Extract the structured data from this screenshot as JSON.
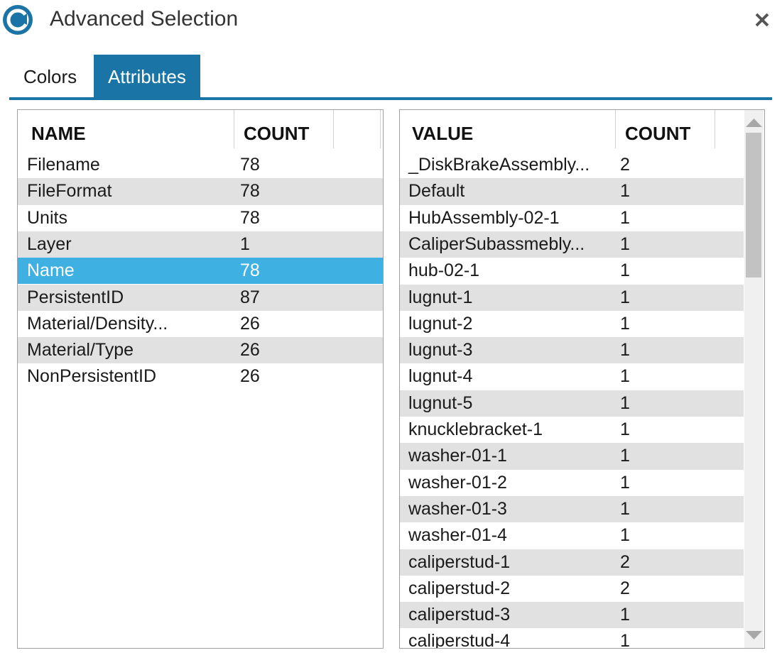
{
  "window": {
    "title": "Advanced Selection"
  },
  "tabs": {
    "items": [
      "Colors",
      "Attributes"
    ],
    "active": 1
  },
  "left_table": {
    "headers": [
      "NAME",
      "COUNT"
    ],
    "selected_row": 4,
    "rows": [
      [
        "Filename",
        78
      ],
      [
        "FileFormat",
        78
      ],
      [
        "Units",
        78
      ],
      [
        "Layer",
        1
      ],
      [
        "Name",
        78
      ],
      [
        "PersistentID",
        87
      ],
      [
        "Material/Density...",
        26
      ],
      [
        "Material/Type",
        26
      ],
      [
        "NonPersistentID",
        26
      ]
    ]
  },
  "right_table": {
    "headers": [
      "VALUE",
      "COUNT"
    ],
    "rows": [
      [
        "_DiskBrakeAssembly...",
        2
      ],
      [
        "Default",
        1
      ],
      [
        "HubAssembly-02-1",
        1
      ],
      [
        "CaliperSubassmebly...",
        1
      ],
      [
        "hub-02-1",
        1
      ],
      [
        "lugnut-1",
        1
      ],
      [
        "lugnut-2",
        1
      ],
      [
        "lugnut-3",
        1
      ],
      [
        "lugnut-4",
        1
      ],
      [
        "lugnut-5",
        1
      ],
      [
        "knucklebracket-1",
        1
      ],
      [
        "washer-01-1",
        1
      ],
      [
        "washer-01-2",
        1
      ],
      [
        "washer-01-3",
        1
      ],
      [
        "washer-01-4",
        1
      ],
      [
        "caliperstud-1",
        2
      ],
      [
        "caliperstud-2",
        2
      ],
      [
        "caliperstud-3",
        1
      ],
      [
        "caliperstud-4",
        1
      ]
    ]
  }
}
